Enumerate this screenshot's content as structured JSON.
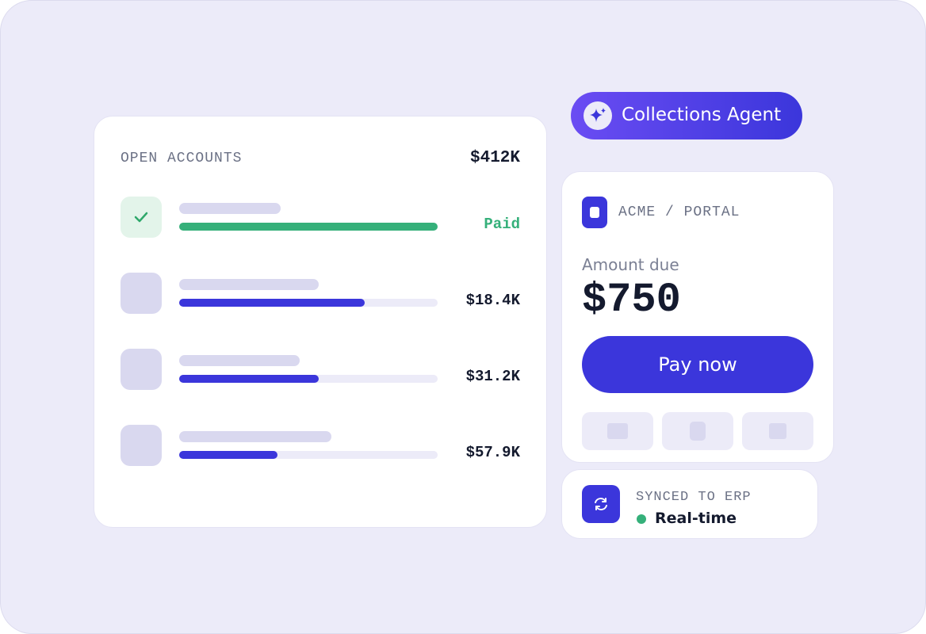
{
  "accounts": {
    "title": "OPEN ACCOUNTS",
    "total": "$412K",
    "rows": [
      {
        "label": "Paid"
      },
      {
        "label": "$18.4K"
      },
      {
        "label": "$31.2K"
      },
      {
        "label": "$57.9K"
      }
    ]
  },
  "agent": {
    "label": "Collections Agent"
  },
  "portal": {
    "name": "ACME / PORTAL",
    "amount_label": "Amount due",
    "amount": "$750",
    "button": "Pay now"
  },
  "sync": {
    "title": "SYNCED TO ERP",
    "status": "Real-time"
  }
}
